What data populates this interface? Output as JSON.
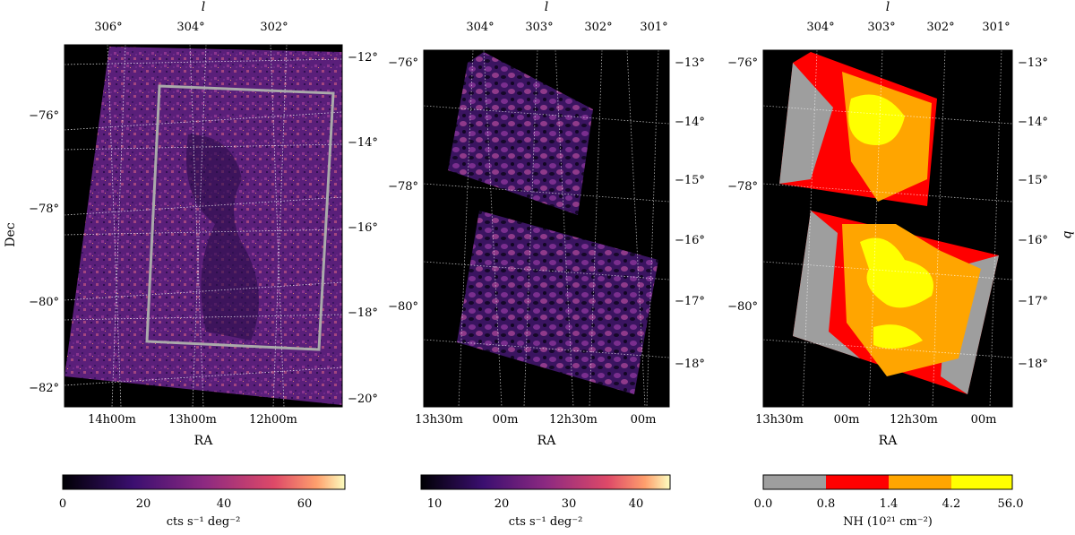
{
  "panels": [
    {
      "top_axis_label": "l",
      "top_ticks": [
        "306°",
        "304°",
        "302°"
      ],
      "left_axis_label": "Dec",
      "left_ticks": [
        "−76°",
        "−78°",
        "−80°",
        "−82°"
      ],
      "right_ticks": [
        "−12°",
        "−14°",
        "−16°",
        "−18°",
        "−20°"
      ],
      "bottom_axis_label": "RA",
      "bottom_ticks": [
        "14h00m",
        "13h00m",
        "12h00m"
      ]
    },
    {
      "top_axis_label": "l",
      "top_ticks": [
        "304°",
        "303°",
        "302°",
        "301°"
      ],
      "left_ticks": [
        "−76°",
        "−78°",
        "−80°"
      ],
      "right_ticks": [
        "−13°",
        "−14°",
        "−15°",
        "−16°",
        "−17°",
        "−18°"
      ],
      "bottom_axis_label": "RA",
      "bottom_ticks": [
        "13h30m",
        "00m",
        "12h30m",
        "00m"
      ]
    },
    {
      "top_axis_label": "l",
      "top_ticks": [
        "304°",
        "303°",
        "302°",
        "301°"
      ],
      "left_ticks": [
        "−76°",
        "−78°",
        "−80°"
      ],
      "right_axis_label": "b",
      "right_ticks": [
        "−13°",
        "−14°",
        "−15°",
        "−16°",
        "−17°",
        "−18°"
      ],
      "bottom_axis_label": "RA",
      "bottom_ticks": [
        "13h30m",
        "00m",
        "12h30m",
        "00m"
      ]
    }
  ],
  "colorbars": [
    {
      "ticks": [
        "0",
        "20",
        "40",
        "60"
      ],
      "label": "cts s⁻¹ deg⁻²",
      "range": [
        0,
        70
      ]
    },
    {
      "ticks": [
        "10",
        "20",
        "30",
        "40"
      ],
      "label": "cts s⁻¹ deg⁻²",
      "range": [
        8,
        45
      ]
    },
    {
      "ticks": [
        "0.0",
        "0.8",
        "1.4",
        "4.2",
        "56.0"
      ],
      "label": "NH (10²¹ cm⁻²)",
      "bins": [
        "#9e9e9e",
        "#ff0000",
        "#ffa500",
        "#ffff00"
      ]
    }
  ],
  "colors": {
    "magma_dark": "#1a0d2e",
    "magma_mid": "#7a2e8e",
    "magma_bright": "#f7c86a",
    "box": "#aaaaaa"
  }
}
